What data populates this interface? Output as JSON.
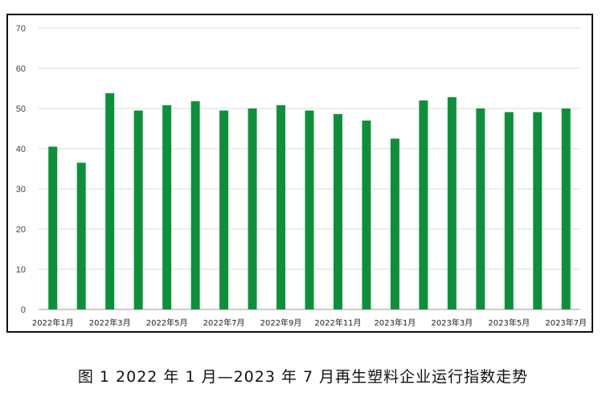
{
  "chart_data": {
    "type": "bar",
    "title": "",
    "xlabel": "",
    "ylabel": "",
    "ylim": [
      0,
      70
    ],
    "yticks": [
      0,
      10,
      20,
      30,
      40,
      50,
      60,
      70
    ],
    "grid": true,
    "legend": "none",
    "bar_color": "#0f8f3c",
    "categories": [
      "2022年1月",
      "2022年2月",
      "2022年3月",
      "2022年4月",
      "2022年5月",
      "2022年6月",
      "2022年7月",
      "2022年8月",
      "2022年9月",
      "2022年10月",
      "2022年11月",
      "2022年12月",
      "2023年1月",
      "2023年2月",
      "2023年3月",
      "2023年4月",
      "2023年5月",
      "2023年6月",
      "2023年7月"
    ],
    "tick_labels": [
      "2022年1月",
      "",
      "2022年3月",
      "",
      "2022年5月",
      "",
      "2022年7月",
      "",
      "2022年9月",
      "",
      "2022年11月",
      "",
      "2023年1月",
      "",
      "2023年3月",
      "",
      "2023年5月",
      "",
      "2023年7月"
    ],
    "values": [
      40.5,
      36.5,
      53.8,
      49.5,
      50.8,
      51.8,
      49.5,
      50.0,
      50.8,
      49.5,
      48.6,
      47.0,
      42.5,
      52.0,
      52.8,
      50.0,
      49.1,
      49.1,
      50.0
    ]
  },
  "caption": "图 1  2022 年 1 月—2023 年 7 月再生塑料企业运行指数走势"
}
